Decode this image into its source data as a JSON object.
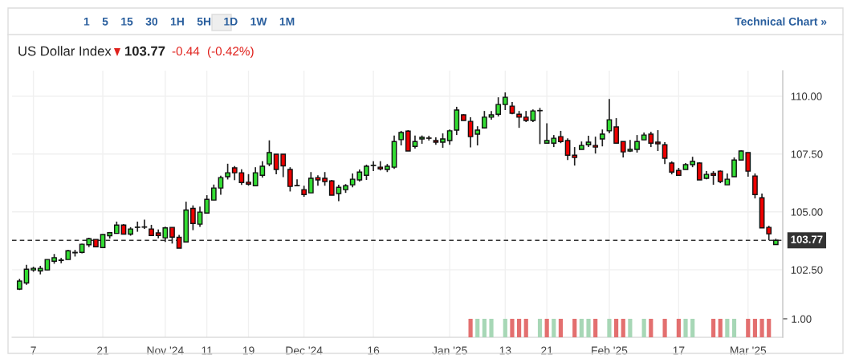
{
  "chart_data": [
    {
      "type": "candlestick",
      "title": "US Dollar Index",
      "annotations": [
        "1    5    15    30    1H    5H    1D    1W    1M",
        "Technical Chart »",
        "103.77",
        "-0.44",
        "(-0.42%)"
      ],
      "categories": [
        null,
        null,
        "7",
        null,
        null,
        null,
        null,
        null,
        null,
        null,
        null,
        null,
        "21",
        null,
        null,
        null,
        null,
        null,
        null,
        null,
        null,
        "Nov '24",
        null,
        null,
        null,
        null,
        null,
        "11",
        null,
        null,
        null,
        null,
        null,
        "19",
        null,
        null,
        null,
        null,
        null,
        null,
        null,
        "Dec '24",
        null,
        null,
        null,
        null,
        null,
        null,
        null,
        null,
        null,
        "16",
        null,
        null,
        null,
        null,
        null,
        null,
        null,
        null,
        null,
        null,
        "Jan '25",
        null,
        null,
        null,
        null,
        null,
        null,
        null,
        "13",
        null,
        null,
        null,
        null,
        null,
        "21",
        null,
        null,
        null,
        null,
        null,
        null,
        null,
        null,
        "Feb '25",
        null,
        null,
        null,
        null,
        null,
        null,
        null,
        null,
        null,
        "17",
        null,
        null,
        null,
        null,
        null,
        null,
        null,
        null,
        null,
        "Mar '25",
        null,
        null,
        null,
        null
      ],
      "ohlc": [
        [
          101.66,
          102.11,
          101.62,
          102.01
        ],
        [
          101.93,
          102.71,
          101.84,
          102.52
        ],
        [
          102.49,
          102.63,
          102.41,
          102.56
        ],
        [
          102.45,
          102.67,
          102.3,
          102.56
        ],
        [
          102.49,
          102.94,
          102.49,
          102.94
        ],
        [
          102.87,
          103.18,
          102.76,
          103.02
        ],
        [
          102.9,
          103.01,
          102.78,
          102.92
        ],
        [
          102.94,
          103.36,
          102.94,
          103.32
        ],
        [
          103.23,
          103.36,
          103.07,
          103.25
        ],
        [
          103.25,
          103.62,
          103.21,
          103.6
        ],
        [
          103.58,
          103.88,
          103.48,
          103.84
        ],
        [
          103.81,
          103.81,
          103.49,
          103.49
        ],
        [
          103.46,
          104.03,
          103.45,
          104.02
        ],
        [
          103.97,
          104.13,
          103.85,
          104.1
        ],
        [
          104.07,
          104.58,
          104.07,
          104.43
        ],
        [
          104.43,
          104.47,
          104.04,
          104.04
        ],
        [
          104.04,
          104.34,
          103.97,
          104.26
        ],
        [
          104.33,
          104.58,
          104.14,
          104.34
        ],
        [
          104.35,
          104.66,
          104.26,
          104.34
        ],
        [
          104.26,
          104.44,
          103.98,
          103.98
        ],
        [
          104.09,
          104.24,
          103.86,
          103.98
        ],
        [
          103.88,
          104.36,
          103.7,
          104.31
        ],
        [
          104.33,
          104.33,
          103.63,
          103.91
        ],
        [
          103.9,
          104.0,
          103.43,
          103.43
        ],
        [
          103.7,
          105.44,
          103.7,
          105.08
        ],
        [
          105.15,
          105.28,
          104.21,
          104.5
        ],
        [
          104.47,
          105.23,
          104.35,
          104.99
        ],
        [
          104.95,
          105.72,
          104.95,
          105.54
        ],
        [
          105.51,
          106.18,
          105.51,
          106.03
        ],
        [
          106.03,
          106.56,
          105.74,
          106.48
        ],
        [
          106.52,
          107.08,
          106.4,
          106.69
        ],
        [
          106.9,
          106.98,
          106.37,
          106.69
        ],
        [
          106.69,
          106.84,
          106.16,
          106.27
        ],
        [
          106.28,
          106.63,
          106.13,
          106.2
        ],
        [
          106.13,
          106.93,
          106.13,
          106.69
        ],
        [
          106.58,
          107.19,
          106.48,
          106.97
        ],
        [
          107.07,
          108.09,
          106.97,
          107.56
        ],
        [
          107.49,
          107.49,
          106.62,
          106.83
        ],
        [
          107.49,
          107.49,
          106.5,
          106.99
        ],
        [
          106.83,
          106.93,
          105.88,
          106.1
        ],
        [
          106.14,
          106.41,
          106.13,
          106.13
        ],
        [
          105.96,
          106.13,
          105.65,
          105.75
        ],
        [
          105.82,
          106.72,
          105.82,
          106.45
        ],
        [
          106.48,
          106.58,
          106.13,
          106.38
        ],
        [
          106.45,
          106.72,
          106.13,
          106.31
        ],
        [
          106.34,
          106.38,
          105.72,
          105.72
        ],
        [
          105.79,
          106.17,
          105.46,
          106.06
        ],
        [
          105.96,
          106.2,
          105.82,
          106.13
        ],
        [
          106.17,
          106.66,
          106.06,
          106.41
        ],
        [
          106.38,
          106.83,
          106.31,
          106.72
        ],
        [
          106.58,
          107.04,
          106.38,
          106.97
        ],
        [
          107.0,
          107.19,
          106.76,
          107.01
        ],
        [
          106.93,
          107.19,
          106.79,
          106.86
        ],
        [
          106.83,
          107.07,
          106.72,
          106.97
        ],
        [
          106.93,
          108.3,
          106.86,
          108.04
        ],
        [
          108.12,
          108.5,
          107.87,
          108.43
        ],
        [
          108.49,
          108.53,
          107.63,
          107.63
        ],
        [
          107.83,
          108.3,
          107.73,
          108.04
        ],
        [
          108.15,
          108.3,
          107.94,
          108.22
        ],
        [
          108.19,
          108.29,
          108.08,
          108.18
        ],
        [
          108.08,
          108.22,
          107.9,
          108.01
        ],
        [
          108.01,
          108.39,
          107.77,
          108.15
        ],
        [
          108.08,
          108.56,
          107.9,
          108.5
        ],
        [
          108.53,
          109.54,
          108.32,
          109.4
        ],
        [
          109.19,
          109.22,
          108.95,
          108.95
        ],
        [
          108.91,
          109.09,
          107.79,
          108.25
        ],
        [
          108.36,
          108.7,
          107.87,
          108.53
        ],
        [
          108.63,
          109.36,
          108.6,
          109.09
        ],
        [
          109.09,
          109.36,
          108.98,
          109.19
        ],
        [
          109.22,
          109.95,
          109.12,
          109.64
        ],
        [
          109.64,
          110.16,
          109.4,
          109.95
        ],
        [
          109.57,
          109.75,
          109.22,
          109.26
        ],
        [
          109.22,
          109.36,
          108.63,
          109.09
        ],
        [
          109.09,
          109.36,
          108.88,
          108.95
        ],
        [
          108.95,
          109.43,
          108.88,
          109.36
        ],
        [
          109.38,
          109.49,
          107.93,
          109.37
        ],
        [
          107.97,
          108.83,
          107.94,
          108.08
        ],
        [
          107.97,
          108.32,
          107.8,
          108.18
        ],
        [
          108.25,
          108.5,
          107.97,
          108.04
        ],
        [
          108.08,
          108.18,
          107.24,
          107.45
        ],
        [
          107.45,
          107.8,
          107.0,
          107.35
        ],
        [
          107.7,
          108.04,
          107.7,
          107.87
        ],
        [
          107.9,
          108.29,
          107.8,
          108.01
        ],
        [
          107.87,
          108.25,
          107.52,
          107.8
        ],
        [
          108.15,
          108.56,
          107.83,
          108.36
        ],
        [
          108.5,
          109.88,
          108.39,
          108.98
        ],
        [
          108.67,
          109.05,
          107.94,
          107.97
        ],
        [
          108.04,
          108.04,
          107.35,
          107.59
        ],
        [
          107.63,
          108.11,
          107.59,
          107.7
        ],
        [
          107.7,
          108.32,
          107.56,
          108.04
        ],
        [
          108.11,
          108.43,
          108.11,
          108.32
        ],
        [
          108.36,
          108.46,
          107.8,
          107.97
        ],
        [
          108.01,
          108.53,
          107.63,
          107.94
        ],
        [
          107.9,
          108.01,
          107.07,
          107.32
        ],
        [
          107.11,
          107.18,
          106.62,
          106.72
        ],
        [
          106.79,
          106.9,
          106.58,
          106.58
        ],
        [
          106.83,
          107.11,
          106.83,
          107.04
        ],
        [
          107.04,
          107.38,
          106.93,
          107.18
        ],
        [
          107.11,
          107.14,
          106.38,
          106.38
        ],
        [
          106.45,
          106.76,
          106.41,
          106.62
        ],
        [
          106.66,
          106.76,
          106.17,
          106.58
        ],
        [
          106.76,
          106.79,
          106.24,
          106.31
        ],
        [
          106.17,
          106.66,
          106.17,
          106.41
        ],
        [
          106.52,
          107.35,
          106.52,
          107.24
        ],
        [
          107.24,
          107.66,
          107.21,
          107.63
        ],
        [
          107.56,
          107.56,
          106.52,
          106.76
        ],
        [
          106.55,
          106.66,
          105.58,
          105.75
        ],
        [
          105.61,
          105.79,
          104.31,
          104.31
        ],
        [
          104.33,
          104.4,
          103.77,
          104.05
        ],
        [
          103.59,
          103.84,
          103.59,
          103.77
        ]
      ],
      "colors": [
        "#33dd33",
        "#33dd33",
        "#33dd33",
        "#33dd33",
        "#33dd33",
        "#33dd33",
        "#33dd33",
        "#33dd33",
        "#33dd33",
        "#33dd33",
        "#33dd33",
        "#ee0000",
        "#33dd33",
        "#33dd33",
        "#33dd33",
        "#ee0000",
        "#33dd33",
        "#33dd33",
        "#ee0000",
        "#ee0000",
        "#ee0000",
        "#33dd33",
        "#ee0000",
        "#ee0000",
        "#33dd33",
        "#ee0000",
        "#33dd33",
        "#33dd33",
        "#33dd33",
        "#33dd33",
        "#33dd33",
        "#ee0000",
        "#ee0000",
        "#ee0000",
        "#33dd33",
        "#33dd33",
        "#33dd33",
        "#ee0000",
        "#ee0000",
        "#ee0000",
        "#ee0000",
        "#ee0000",
        "#33dd33",
        "#ee0000",
        "#ee0000",
        "#ee0000",
        "#33dd33",
        "#33dd33",
        "#33dd33",
        "#33dd33",
        "#33dd33",
        "#33dd33",
        "#ee0000",
        "#33dd33",
        "#33dd33",
        "#33dd33",
        "#ee0000",
        "#33dd33",
        "#33dd33",
        "#ee0000",
        "#ee0000",
        "#33dd33",
        "#33dd33",
        "#33dd33",
        "#ee0000",
        "#ee0000",
        "#33dd33",
        "#33dd33",
        "#33dd33",
        "#33dd33",
        "#33dd33",
        "#ee0000",
        "#ee0000",
        "#ee0000",
        "#33dd33",
        "#ee0000",
        "#33dd33",
        "#33dd33",
        "#ee0000",
        "#ee0000",
        "#ee0000",
        "#33dd33",
        "#33dd33",
        "#ee0000",
        "#33dd33",
        "#33dd33",
        "#ee0000",
        "#ee0000",
        "#33dd33",
        "#33dd33",
        "#33dd33",
        "#ee0000",
        "#ee0000",
        "#ee0000",
        "#ee0000",
        "#ee0000",
        "#33dd33",
        "#33dd33",
        "#ee0000",
        "#33dd33",
        "#ee0000",
        "#ee0000",
        "#33dd33",
        "#33dd33",
        "#33dd33",
        "#ee0000",
        "#ee0000",
        "#ee0000",
        "#ee0000",
        "#33dd33"
      ],
      "ylim": [
        99.58,
        111.1
      ],
      "yticks": [
        {
          "value": 102.5,
          "label": "102.50"
        },
        {
          "value": 105,
          "label": "105.00"
        },
        {
          "value": 107.5,
          "label": "107.50"
        },
        {
          "value": 110,
          "label": "110.00"
        }
      ],
      "ref_lines": [
        {
          "axis": "y",
          "value": 103.77,
          "label": "103.77",
          "color": "#333333",
          "line_style": "dashed"
        }
      ],
      "grid": true,
      "y2lim": [
        0,
        14.4
      ],
      "y2ticks": [
        {
          "value": 1,
          "label": "1.00"
        }
      ],
      "series": [
        {
          "type": "bar",
          "axis": "y2",
          "values": [
            null,
            null,
            null,
            null,
            null,
            null,
            null,
            null,
            null,
            null,
            null,
            null,
            null,
            null,
            null,
            null,
            null,
            null,
            null,
            null,
            null,
            null,
            null,
            null,
            null,
            null,
            null,
            null,
            null,
            null,
            null,
            null,
            null,
            null,
            null,
            null,
            null,
            null,
            null,
            null,
            null,
            null,
            null,
            null,
            null,
            null,
            null,
            null,
            null,
            null,
            null,
            null,
            null,
            null,
            null,
            null,
            null,
            null,
            null,
            null,
            null,
            null,
            null,
            null,
            null,
            1,
            1,
            1,
            1,
            null,
            1,
            1,
            1,
            1,
            null,
            1,
            1,
            1,
            1,
            null,
            1,
            1,
            1,
            1,
            null,
            1,
            1,
            1,
            1,
            null,
            1,
            1,
            null,
            1,
            null,
            1,
            1,
            1,
            null,
            null,
            1,
            1,
            1,
            1,
            null,
            1,
            1,
            1,
            1,
            null
          ],
          "colors": [
            null,
            null,
            null,
            null,
            null,
            null,
            null,
            null,
            null,
            null,
            null,
            null,
            null,
            null,
            null,
            null,
            null,
            null,
            null,
            null,
            null,
            null,
            null,
            null,
            null,
            null,
            null,
            null,
            null,
            null,
            null,
            null,
            null,
            null,
            null,
            null,
            null,
            null,
            null,
            null,
            null,
            null,
            null,
            null,
            null,
            null,
            null,
            null,
            null,
            null,
            null,
            null,
            null,
            null,
            null,
            null,
            null,
            null,
            null,
            null,
            null,
            null,
            null,
            null,
            null,
            "#e36f6f",
            "#a7d7b6",
            "#a7d7b6",
            "#a7d7b6",
            null,
            "#a7d7b6",
            "#e36f6f",
            "#e36f6f",
            "#e36f6f",
            null,
            "#a7d7b6",
            "#e36f6f",
            "#a7d7b6",
            "#e36f6f",
            null,
            "#e36f6f",
            "#a7d7b6",
            "#a7d7b6",
            "#e36f6f",
            null,
            "#a7d7b6",
            "#e36f6f",
            "#e36f6f",
            "#a7d7b6",
            null,
            "#a7d7b6",
            "#e36f6f",
            null,
            "#e36f6f",
            null,
            "#e36f6f",
            "#a7d7b6",
            "#a7d7b6",
            null,
            null,
            "#e36f6f",
            "#e36f6f",
            "#a7d7b6",
            "#a7d7b6",
            null,
            "#e36f6f",
            "#e36f6f",
            "#e36f6f",
            "#e36f6f",
            null
          ]
        }
      ]
    }
  ]
}
